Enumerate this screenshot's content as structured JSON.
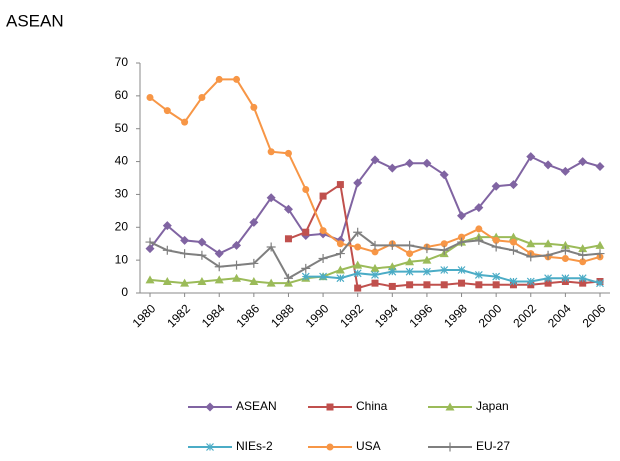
{
  "chart_data": {
    "type": "line",
    "title": "ASEAN",
    "x": [
      1980,
      1981,
      1982,
      1983,
      1984,
      1985,
      1986,
      1987,
      1988,
      1989,
      1990,
      1991,
      1992,
      1993,
      1994,
      1995,
      1996,
      1997,
      1998,
      1999,
      2000,
      2001,
      2002,
      2003,
      2004,
      2005,
      2006
    ],
    "xlim": [
      1980,
      2006
    ],
    "xticks": [
      1980,
      1982,
      1984,
      1986,
      1988,
      1990,
      1992,
      1994,
      1996,
      1998,
      2000,
      2002,
      2004,
      2006
    ],
    "ylim": [
      0,
      70
    ],
    "yticks": [
      0,
      10,
      20,
      30,
      40,
      50,
      60,
      70
    ],
    "grid": false,
    "series": [
      {
        "name": "ASEAN",
        "color": "#8064a2",
        "marker": "diamond",
        "values": [
          13.5,
          20.5,
          16,
          15.5,
          12,
          14.5,
          21.5,
          29,
          25.5,
          17.5,
          18,
          16,
          33.5,
          40.5,
          38,
          39.5,
          39.5,
          36,
          23.5,
          26,
          32.5,
          33,
          41.5,
          39,
          37,
          40,
          38.5
        ]
      },
      {
        "name": "China",
        "color": "#c0504d",
        "marker": "square",
        "values": [
          null,
          null,
          null,
          null,
          null,
          null,
          null,
          null,
          16.5,
          18.5,
          29.5,
          33,
          1.5,
          3,
          2,
          2.5,
          2.5,
          2.5,
          3,
          2.5,
          2.5,
          2.5,
          2.5,
          3,
          3.5,
          3,
          3.5
        ]
      },
      {
        "name": "Japan",
        "color": "#9bbb59",
        "marker": "triangle",
        "values": [
          4,
          3.5,
          3,
          3.5,
          4,
          4.5,
          3.5,
          3,
          3,
          4.5,
          5,
          7,
          8.5,
          7.5,
          8,
          9.5,
          10,
          12,
          15.5,
          17,
          17,
          17,
          15,
          15,
          14.5,
          13.5,
          14.5
        ]
      },
      {
        "name": "NIEs-2",
        "color": "#4bacc6",
        "marker": "star",
        "values": [
          null,
          null,
          null,
          null,
          null,
          null,
          null,
          null,
          null,
          5,
          5,
          4.5,
          6,
          5.5,
          6.5,
          6.5,
          6.5,
          7,
          7,
          5.5,
          5,
          3.5,
          3.5,
          4.5,
          4.5,
          4.5,
          3
        ]
      },
      {
        "name": "USA",
        "color": "#f79646",
        "marker": "circle",
        "values": [
          59.5,
          55.5,
          52,
          59.5,
          65,
          65,
          56.5,
          43,
          42.5,
          31.5,
          19,
          15,
          14,
          12.5,
          15,
          12,
          14,
          15,
          17,
          19.5,
          16,
          15.5,
          12,
          11,
          10.5,
          9.5,
          11
        ]
      },
      {
        "name": "EU-27",
        "color": "#7f7f7f",
        "marker": "plus",
        "values": [
          15.5,
          13,
          12,
          11.5,
          8,
          8.5,
          9,
          14,
          4.5,
          7.5,
          10.5,
          12,
          18.5,
          14.5,
          14.5,
          14.5,
          13.5,
          13,
          15.5,
          16,
          14,
          13,
          11,
          11.5,
          13,
          11.5,
          12
        ]
      }
    ]
  }
}
